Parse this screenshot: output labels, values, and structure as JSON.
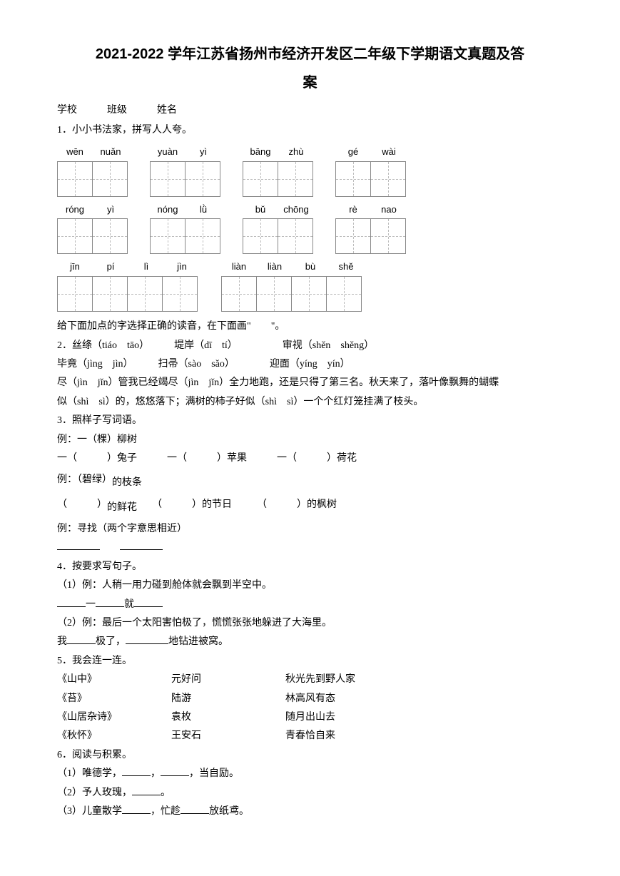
{
  "title_line1": "2021-2022 学年江苏省扬州市经济开发区二年级下学期语文真题及答",
  "title_line2": "案",
  "header": "学校　　　班级　　　姓名",
  "q1": "1．小小书法家，拼写人人夸。",
  "pinyin_rows": [
    [
      [
        "wēn",
        "nuǎn"
      ],
      [
        "yuàn",
        "yì"
      ],
      [
        "bāng",
        "zhù"
      ],
      [
        "gé",
        "wài"
      ]
    ],
    [
      [
        "róng",
        "yì"
      ],
      [
        "nóng",
        "lǜ"
      ],
      [
        "bǔ",
        "chōng"
      ],
      [
        "rè",
        "nao"
      ]
    ],
    [
      [
        "jīn",
        "pí",
        "lì",
        "jìn"
      ],
      [
        "liàn",
        "liàn",
        "bù",
        "shě"
      ]
    ]
  ],
  "q2_intro": "给下面加点的字选择正确的读音，在下面画\"　　\"。",
  "q2": "2．丝绦（tiáo　tāo）　　　堤岸（dī　tí）　　　　　审视（shěn　shěng）",
  "q2_line2": "毕竟（jìng　jìn）　　　扫帚（sào　sǎo）　　　　迎面（yíng　yín）",
  "q2_line3": "尽（jìn　jǐn）管我已经竭尽（jìn　jǐn）全力地跑，还是只得了第三名。秋天来了，落叶像飘舞的蝴蝶",
  "q2_line4": "似（shì　sì）的，悠悠落下；满树的柿子好似（shì　sì）一个个红灯笼挂满了枝头。",
  "q3": "3．照样子写词语。",
  "q3_ex1": "例：一（棵）柳树",
  "q3_line1": "一（　　　）兔子　　　一（　　　）苹果　　　一（　　　）荷花",
  "q3_ex2_pre": "例：（碧绿）",
  "q3_ex2_post": "的枝条",
  "q3_line2_a": "（　　　）",
  "q3_line2_a2": "的鲜花",
  "q3_line2_b": "　　（　　　）的节日　　　（　　　）的枫树",
  "q3_ex3": "例：寻找（两个字意思相近）",
  "q4": "4．按要求写句子。",
  "q4_1": "（1）例：人稍一用力碰到舱体就会飘到半空中。",
  "q4_1_blank_a": "一",
  "q4_1_blank_b": "就",
  "q4_2": "（2）例：最后一个太阳害怕极了，慌慌张张地躲进了大海里。",
  "q4_2_pre": "我",
  "q4_2_mid": "极了，",
  "q4_2_post": "地钻进被窝。",
  "q5": "5．我会连一连。",
  "q5_rows": [
    [
      "《山中》",
      "元好问",
      "秋光先到野人家"
    ],
    [
      "《苔》",
      "陆游",
      "林高风有态"
    ],
    [
      "《山居杂诗》",
      "袁枚",
      "随月出山去"
    ],
    [
      "《秋怀》",
      "王安石",
      "青春恰自来"
    ]
  ],
  "q6": "6．阅读与积累。",
  "q6_1_pre": "（1）唯德学，",
  "q6_1_mid": "，",
  "q6_1_post": "，当自励。",
  "q6_2_pre": "（2）予人玫瑰，",
  "q6_2_post": "。",
  "q6_3_pre": "（3）儿童散学",
  "q6_3_mid": "，忙趁",
  "q6_3_post": "放纸鸢。"
}
